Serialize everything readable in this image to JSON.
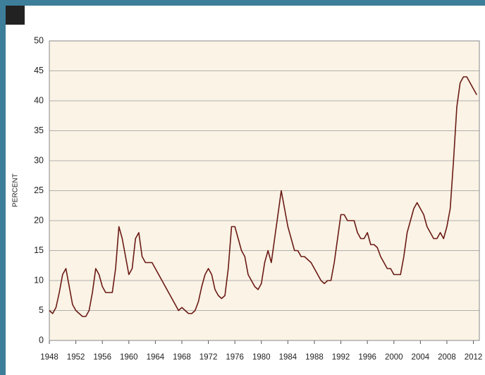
{
  "chart_data": {
    "type": "line",
    "y_label": "PERCENT",
    "x": [
      1948,
      1948.5,
      1949,
      1949.5,
      1950,
      1950.5,
      1951,
      1951.5,
      1952,
      1952.5,
      1953,
      1953.5,
      1954,
      1954.5,
      1955,
      1955.5,
      1956,
      1956.5,
      1957,
      1957.5,
      1958,
      1958.5,
      1959,
      1959.5,
      1960,
      1960.5,
      1961,
      1961.5,
      1962,
      1962.5,
      1963,
      1963.5,
      1964,
      1964.5,
      1965,
      1965.5,
      1966,
      1966.5,
      1967,
      1967.5,
      1968,
      1968.5,
      1969,
      1969.5,
      1970,
      1970.5,
      1971,
      1971.5,
      1972,
      1972.5,
      1973,
      1973.5,
      1974,
      1974.5,
      1975,
      1975.5,
      1976,
      1976.5,
      1977,
      1977.5,
      1978,
      1978.5,
      1979,
      1979.5,
      1980,
      1980.5,
      1981,
      1981.5,
      1982,
      1982.5,
      1983,
      1983.5,
      1984,
      1984.5,
      1985,
      1985.5,
      1986,
      1986.5,
      1987,
      1987.5,
      1988,
      1988.5,
      1989,
      1989.5,
      1990,
      1990.5,
      1991,
      1991.5,
      1992,
      1992.5,
      1993,
      1993.5,
      1994,
      1994.5,
      1995,
      1995.5,
      1996,
      1996.5,
      1997,
      1997.5,
      1998,
      1998.5,
      1999,
      1999.5,
      2000,
      2000.5,
      2001,
      2001.5,
      2002,
      2002.5,
      2003,
      2003.5,
      2004,
      2004.5,
      2005,
      2005.5,
      2006,
      2006.5,
      2007,
      2007.5,
      2008,
      2008.5,
      2009,
      2009.5,
      2010,
      2010.5,
      2011,
      2011.5,
      2012,
      2012.5
    ],
    "series": [
      {
        "color": "#6b1a14",
        "values": [
          5,
          4.5,
          5.5,
          8,
          11,
          12,
          9,
          6,
          5,
          4.5,
          4,
          4,
          5,
          8,
          12,
          11,
          9,
          8,
          8,
          8,
          12,
          19,
          17,
          14,
          11,
          12,
          17,
          18,
          14,
          13,
          13,
          13,
          12,
          11,
          10,
          9,
          8,
          7,
          6,
          5,
          5.5,
          5,
          4.5,
          4.5,
          5,
          6.5,
          9,
          11,
          12,
          11,
          8.5,
          7.5,
          7,
          7.5,
          12,
          19,
          19,
          17,
          15,
          14,
          11,
          10,
          9,
          8.5,
          9.5,
          13,
          15,
          13,
          17,
          21,
          25,
          22,
          19,
          17,
          15,
          15,
          14,
          14,
          13.5,
          13,
          12,
          11,
          10,
          9.5,
          10,
          10,
          13,
          17,
          21,
          21,
          20,
          20,
          20,
          18,
          17,
          17,
          18,
          16,
          16,
          15.5,
          14,
          13,
          12,
          12,
          11,
          11,
          11,
          14,
          18,
          20,
          22,
          23,
          22,
          21,
          19,
          18,
          17,
          17,
          18,
          17,
          19,
          22,
          30,
          39,
          43,
          44,
          44,
          43,
          42,
          41
        ]
      }
    ],
    "xlim": [
      1948,
      2012.9
    ],
    "ylim": [
      0,
      50
    ],
    "xticks": [
      1948,
      1952,
      1956,
      1960,
      1964,
      1968,
      1972,
      1976,
      1980,
      1984,
      1988,
      1992,
      1996,
      2000,
      2004,
      2008,
      2012
    ],
    "yticks": [
      0,
      5,
      10,
      15,
      20,
      25,
      30,
      35,
      40,
      45,
      50
    ],
    "grid": true
  }
}
